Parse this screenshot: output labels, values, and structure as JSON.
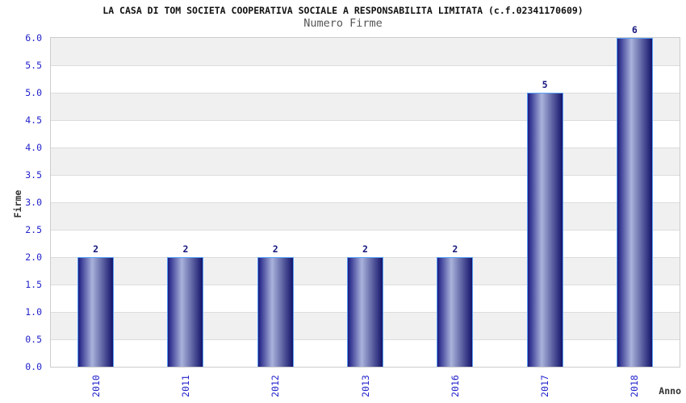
{
  "chart_data": {
    "type": "bar",
    "title": "LA CASA DI TOM SOCIETA COOPERATIVA SOCIALE A RESPONSABILITA LIMITATA (c.f.02341170609)",
    "subtitle": "Numero Firme",
    "categories": [
      "2010",
      "2011",
      "2012",
      "2013",
      "2016",
      "2017",
      "2018"
    ],
    "values": [
      2,
      2,
      2,
      2,
      2,
      5,
      6
    ],
    "bar_labels": [
      "2",
      "2",
      "2",
      "2",
      "2",
      "5",
      "6"
    ],
    "xlabel": "Anno",
    "ylabel": "Firme",
    "ylim": [
      0,
      6
    ],
    "ytick_step": 0.5,
    "ytick_labels": [
      "0.0",
      "0.5",
      "1.0",
      "1.5",
      "2.0",
      "2.5",
      "3.0",
      "3.5",
      "4.0",
      "4.5",
      "5.0",
      "5.5",
      "6.0"
    ],
    "grid": "alternating-horizontal-bands",
    "legend_position": "none",
    "colors": {
      "bar_gradient_left": "#1c1c82",
      "bar_gradient_highlight": "#a9b3db",
      "bar_gradient_right": "#14146b",
      "bar_border": "#58a0f5",
      "tick_text": "#2222cc",
      "value_text": "#16167e",
      "axis_label_text": "#333333",
      "title_text": "#111111",
      "subtitle_text": "#555555",
      "band_gray": "#f0f0f0",
      "band_white": "#ffffff",
      "plot_border": "#cccccc",
      "gridline": "#dcdcdc"
    }
  }
}
